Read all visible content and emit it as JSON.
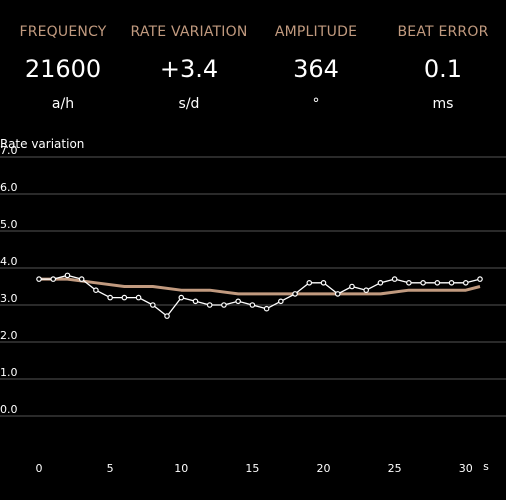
{
  "accent_color": "#c19a7f",
  "metrics": [
    {
      "label": "FREQUENCY",
      "value": "21600",
      "unit": "a/h"
    },
    {
      "label": "RATE VARIATION",
      "value": "+3.4",
      "unit": "s/d"
    },
    {
      "label": "AMPLITUDE",
      "value": "364",
      "unit": "°"
    },
    {
      "label": "BEAT ERROR",
      "value": "0.1",
      "unit": "ms"
    }
  ],
  "chart_data": {
    "type": "line",
    "title": "Rate variation",
    "xlabel": "s",
    "ylabel": "",
    "xlim": [
      0,
      31
    ],
    "ylim": [
      0,
      7
    ],
    "x_ticks": [
      "0",
      "5",
      "10",
      "15",
      "20",
      "25",
      "30"
    ],
    "y_ticks": [
      "0.0",
      "1.0",
      "2.0",
      "3.0",
      "4.0",
      "5.0",
      "6.0",
      "7.0"
    ],
    "grid": true,
    "series": [
      {
        "color": "#ffffff",
        "marker": "circle",
        "x": [
          0,
          1,
          2,
          3,
          4,
          5,
          6,
          7,
          8,
          9,
          10,
          11,
          12,
          13,
          14,
          15,
          16,
          17,
          18,
          19,
          20,
          21,
          22,
          23,
          24,
          25,
          26,
          27,
          28,
          29,
          30,
          31
        ],
        "y": [
          3.7,
          3.7,
          3.8,
          3.7,
          3.4,
          3.2,
          3.2,
          3.2,
          3.0,
          2.7,
          3.2,
          3.1,
          3.0,
          3.0,
          3.1,
          3.0,
          2.9,
          3.1,
          3.3,
          3.6,
          3.6,
          3.3,
          3.5,
          3.4,
          3.6,
          3.7,
          3.6,
          3.6,
          3.6,
          3.6,
          3.6,
          3.7
        ]
      },
      {
        "color": "#c19a7f",
        "marker": "none",
        "x": [
          0,
          2,
          4,
          6,
          8,
          10,
          12,
          14,
          16,
          18,
          20,
          22,
          24,
          26,
          28,
          30,
          31
        ],
        "y": [
          3.7,
          3.7,
          3.6,
          3.5,
          3.5,
          3.4,
          3.4,
          3.3,
          3.3,
          3.3,
          3.3,
          3.3,
          3.3,
          3.4,
          3.4,
          3.4,
          3.5
        ]
      }
    ]
  }
}
